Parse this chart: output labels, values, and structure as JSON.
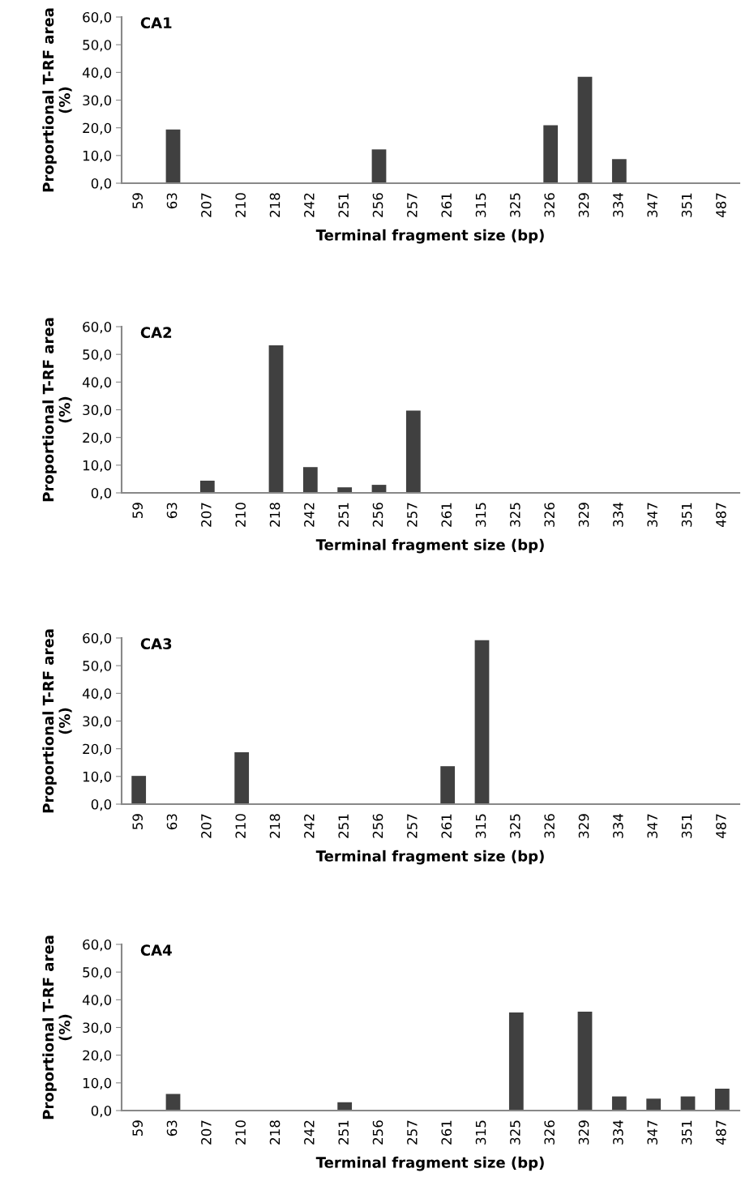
{
  "chart_data": [
    {
      "type": "bar",
      "title": "CA1",
      "xlabel": "Terminal fragment size (bp)",
      "ylabel": "Proportional T-RF area\n(%)",
      "categories": [
        "59",
        "63",
        "207",
        "210",
        "218",
        "242",
        "251",
        "256",
        "257",
        "261",
        "315",
        "325",
        "326",
        "329",
        "334",
        "347",
        "351",
        "487"
      ],
      "values": [
        0,
        19.4,
        0,
        0,
        0,
        0,
        0,
        12.2,
        0,
        0,
        0,
        0,
        20.9,
        38.4,
        8.7,
        0,
        0,
        0
      ],
      "color": "#404040",
      "ylim": [
        0,
        60
      ],
      "yticks": [
        {
          "value": 0,
          "label": "0,0"
        },
        {
          "value": 10,
          "label": "10,0"
        },
        {
          "value": 20,
          "label": "20,0"
        },
        {
          "value": 30,
          "label": "30,0"
        },
        {
          "value": 40,
          "label": "40,0"
        },
        {
          "value": 50,
          "label": "50,0"
        },
        {
          "value": 60,
          "label": "60,0"
        }
      ],
      "grid": false
    },
    {
      "type": "bar",
      "title": "CA2",
      "xlabel": "Terminal fragment size (bp)",
      "ylabel": "Proportional T-RF area\n(%)",
      "categories": [
        "59",
        "63",
        "207",
        "210",
        "218",
        "242",
        "251",
        "256",
        "257",
        "261",
        "315",
        "325",
        "326",
        "329",
        "334",
        "347",
        "351",
        "487"
      ],
      "values": [
        0,
        0,
        4.4,
        0,
        53.3,
        9.3,
        2.0,
        2.9,
        29.7,
        0,
        0,
        0,
        0,
        0,
        0,
        0,
        0,
        0
      ],
      "color": "#404040",
      "ylim": [
        0,
        60
      ],
      "yticks": [
        {
          "value": 0,
          "label": "0,0"
        },
        {
          "value": 10,
          "label": "10,0"
        },
        {
          "value": 20,
          "label": "20,0"
        },
        {
          "value": 30,
          "label": "30,0"
        },
        {
          "value": 40,
          "label": "40,0"
        },
        {
          "value": 50,
          "label": "50,0"
        },
        {
          "value": 60,
          "label": "60,0"
        }
      ],
      "grid": false
    },
    {
      "type": "bar",
      "title": "CA3",
      "xlabel": "Terminal fragment size (bp)",
      "ylabel": "Proportional T-RF area\n(%)",
      "categories": [
        "59",
        "63",
        "207",
        "210",
        "218",
        "242",
        "251",
        "256",
        "257",
        "261",
        "315",
        "325",
        "326",
        "329",
        "334",
        "347",
        "351",
        "487"
      ],
      "values": [
        10.2,
        0,
        0,
        18.7,
        0,
        0,
        0,
        0,
        0,
        13.7,
        59.2,
        0,
        0,
        0,
        0,
        0,
        0,
        0
      ],
      "color": "#404040",
      "ylim": [
        0,
        60
      ],
      "yticks": [
        {
          "value": 0,
          "label": "0,0"
        },
        {
          "value": 10,
          "label": "10,0"
        },
        {
          "value": 20,
          "label": "20,0"
        },
        {
          "value": 30,
          "label": "30,0"
        },
        {
          "value": 40,
          "label": "40,0"
        },
        {
          "value": 50,
          "label": "50,0"
        },
        {
          "value": 60,
          "label": "60,0"
        }
      ],
      "grid": false
    },
    {
      "type": "bar",
      "title": "CA4",
      "xlabel": "Terminal fragment size (bp)",
      "ylabel": "Proportional T-RF area\n(%)",
      "categories": [
        "59",
        "63",
        "207",
        "210",
        "218",
        "242",
        "251",
        "256",
        "257",
        "261",
        "315",
        "325",
        "326",
        "329",
        "334",
        "347",
        "351",
        "487"
      ],
      "values": [
        0,
        6.0,
        0,
        0,
        0,
        0,
        3.0,
        0,
        0,
        0,
        0,
        35.4,
        0,
        35.7,
        5.1,
        4.3,
        5.1,
        7.9
      ],
      "color": "#404040",
      "ylim": [
        0,
        60
      ],
      "yticks": [
        {
          "value": 0,
          "label": "0,0"
        },
        {
          "value": 10,
          "label": "10,0"
        },
        {
          "value": 20,
          "label": "20,0"
        },
        {
          "value": 30,
          "label": "30,0"
        },
        {
          "value": 40,
          "label": "40,0"
        },
        {
          "value": 50,
          "label": "50,0"
        },
        {
          "value": 60,
          "label": "60,0"
        }
      ],
      "grid": false
    }
  ]
}
